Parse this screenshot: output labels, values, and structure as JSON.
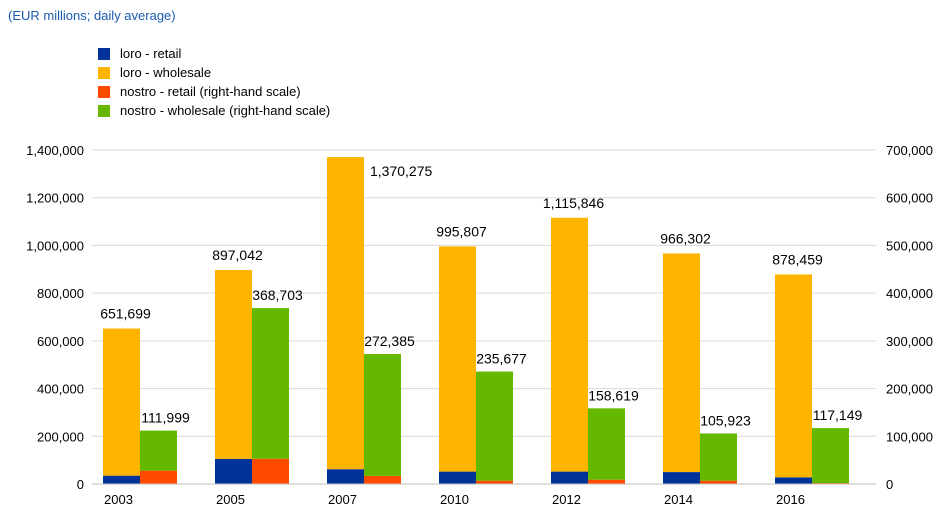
{
  "subtitle": "(EUR millions; daily average)",
  "legend": [
    {
      "label": "loro - retail",
      "color": "#003299"
    },
    {
      "label": "loro - wholesale",
      "color": "#FFB400"
    },
    {
      "label": "nostro - retail (right-hand scale)",
      "color": "#FF4B00"
    },
    {
      "label": "nostro - wholesale (right-hand scale)",
      "color": "#65B800"
    }
  ],
  "chart_data": {
    "type": "bar",
    "categories": [
      "2003",
      "2005",
      "2007",
      "2010",
      "2012",
      "2014",
      "2016"
    ],
    "y_left": {
      "min": 0,
      "max": 1400000,
      "step": 200000,
      "ticks": [
        "0",
        "200,000",
        "400,000",
        "600,000",
        "800,000",
        "1,000,000",
        "1,200,000",
        "1,400,000"
      ]
    },
    "y_right": {
      "min": 0,
      "max": 700000,
      "step": 100000,
      "ticks": [
        "0",
        "100,000",
        "200,000",
        "300,000",
        "400,000",
        "500,000",
        "600,000",
        "700,000"
      ]
    },
    "grid": true,
    "series": [
      {
        "name": "loro - retail",
        "axis": "left",
        "stack": "loro",
        "color": "#003299",
        "values": [
          35000,
          105000,
          62000,
          52000,
          52000,
          50000,
          28000
        ]
      },
      {
        "name": "loro - wholesale",
        "axis": "left",
        "stack": "loro",
        "color": "#FFB400",
        "values": [
          616699,
          792042,
          1308275,
          943807,
          1063846,
          916302,
          850459
        ]
      },
      {
        "name": "nostro - retail (right-hand scale)",
        "axis": "right",
        "stack": "nostro",
        "color": "#FF4B00",
        "values": [
          28000,
          53000,
          17000,
          7000,
          9000,
          7000,
          2000
        ]
      },
      {
        "name": "nostro - wholesale (right-hand scale)",
        "axis": "right",
        "stack": "nostro",
        "color": "#65B800",
        "values": [
          83999,
          315703,
          255385,
          228677,
          149619,
          98923,
          115149
        ]
      }
    ],
    "labels": {
      "loro_total": [
        "651,699",
        "897,042",
        "1,370,275",
        "995,807",
        "1,115,846",
        "966,302",
        "878,459"
      ],
      "nostro_total": [
        "111,999",
        "368,703",
        "272,385",
        "235,677",
        "158,619",
        "105,923",
        "117,149"
      ]
    }
  }
}
